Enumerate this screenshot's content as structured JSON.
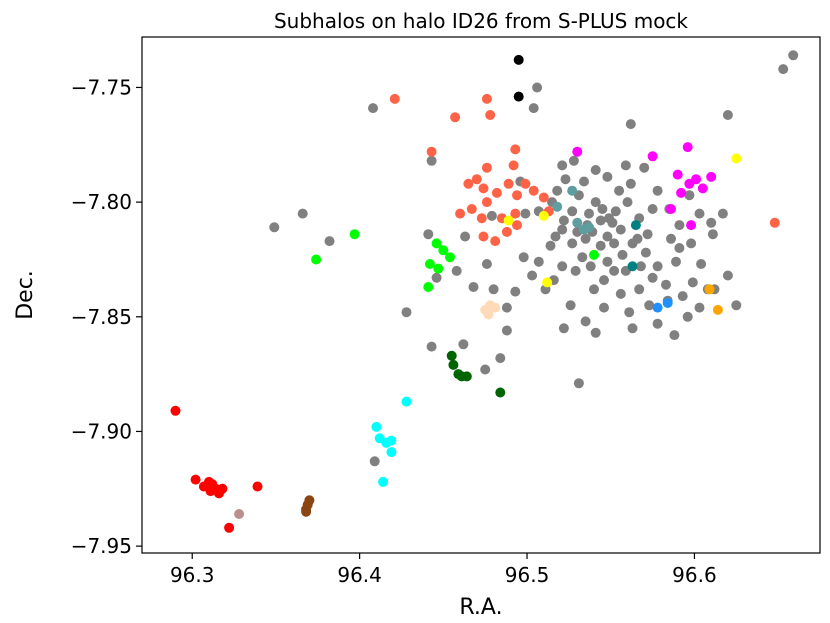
{
  "chart_data": {
    "type": "scatter",
    "title": "Subhalos on halo ID26 from S-PLUS mock",
    "xlabel": "R.A.",
    "ylabel": "Dec.",
    "xlim": [
      96.27,
      96.675
    ],
    "ylim": [
      -7.953,
      -7.728
    ],
    "xticks": [
      96.3,
      96.4,
      96.5,
      96.6
    ],
    "xtick_labels": [
      "96.3",
      "96.4",
      "96.5",
      "96.6"
    ],
    "yticks": [
      -7.95,
      -7.9,
      -7.85,
      -7.8,
      -7.75
    ],
    "ytick_labels": [
      "−7.95",
      "−7.90",
      "−7.85",
      "−7.80",
      "−7.75"
    ],
    "grid": false,
    "legend": null,
    "series": [
      {
        "color": "#808080",
        "points": [
          [
            96.408,
            -7.759
          ],
          [
            96.349,
            -7.811
          ],
          [
            96.366,
            -7.805
          ],
          [
            96.382,
            -7.817
          ],
          [
            96.443,
            -7.782
          ],
          [
            96.441,
            -7.814
          ],
          [
            96.463,
            -7.815
          ],
          [
            96.479,
            -7.806
          ],
          [
            96.499,
            -7.805
          ],
          [
            96.517,
            -7.815
          ],
          [
            96.496,
            -7.791
          ],
          [
            96.504,
            -7.759
          ],
          [
            96.506,
            -7.75
          ],
          [
            96.521,
            -7.784
          ],
          [
            96.518,
            -7.795
          ],
          [
            96.528,
            -7.782
          ],
          [
            96.534,
            -7.791
          ],
          [
            96.541,
            -7.8
          ],
          [
            96.549,
            -7.807
          ],
          [
            96.555,
            -7.795
          ],
          [
            96.562,
            -7.766
          ],
          [
            96.57,
            -7.785
          ],
          [
            96.578,
            -7.795
          ],
          [
            96.585,
            -7.803
          ],
          [
            96.559,
            -7.784
          ],
          [
            96.562,
            -7.792
          ],
          [
            96.567,
            -7.807
          ],
          [
            96.572,
            -7.814
          ],
          [
            96.598,
            -7.818
          ],
          [
            96.61,
            -7.809
          ],
          [
            96.617,
            -7.805
          ],
          [
            96.62,
            -7.762
          ],
          [
            96.653,
            -7.742
          ],
          [
            96.659,
            -7.736
          ],
          [
            96.578,
            -7.828
          ],
          [
            96.583,
            -7.836
          ],
          [
            96.589,
            -7.826
          ],
          [
            96.593,
            -7.841
          ],
          [
            96.599,
            -7.835
          ],
          [
            96.604,
            -7.827
          ],
          [
            96.608,
            -7.838
          ],
          [
            96.556,
            -7.84
          ],
          [
            96.561,
            -7.848
          ],
          [
            96.563,
            -7.855
          ],
          [
            96.567,
            -7.838
          ],
          [
            96.573,
            -7.845
          ],
          [
            96.546,
            -7.846
          ],
          [
            96.541,
            -7.857
          ],
          [
            96.535,
            -7.852
          ],
          [
            96.526,
            -7.845
          ],
          [
            96.522,
            -7.855
          ],
          [
            96.531,
            -7.879
          ],
          [
            96.511,
            -7.838
          ],
          [
            96.507,
            -7.826
          ],
          [
            96.514,
            -7.819
          ],
          [
            96.521,
            -7.812
          ],
          [
            96.527,
            -7.818
          ],
          [
            96.533,
            -7.824
          ],
          [
            96.539,
            -7.813
          ],
          [
            96.544,
            -7.819
          ],
          [
            96.548,
            -7.826
          ],
          [
            96.552,
            -7.818
          ],
          [
            96.556,
            -7.812
          ],
          [
            96.527,
            -7.804
          ],
          [
            96.531,
            -7.797
          ],
          [
            96.537,
            -7.805
          ],
          [
            96.545,
            -7.803
          ],
          [
            96.551,
            -7.809
          ],
          [
            96.538,
            -7.828
          ],
          [
            96.529,
            -7.83
          ],
          [
            96.521,
            -7.828
          ],
          [
            96.516,
            -7.834
          ],
          [
            96.503,
            -7.832
          ],
          [
            96.498,
            -7.824
          ],
          [
            96.493,
            -7.839
          ],
          [
            96.488,
            -7.846
          ],
          [
            96.48,
            -7.838
          ],
          [
            96.476,
            -7.827
          ],
          [
            96.468,
            -7.837
          ],
          [
            96.458,
            -7.83
          ],
          [
            96.446,
            -7.833
          ],
          [
            96.428,
            -7.848
          ],
          [
            96.443,
            -7.863
          ],
          [
            96.475,
            -7.873
          ],
          [
            96.484,
            -7.868
          ],
          [
            96.409,
            -7.913
          ],
          [
            96.462,
            -7.862
          ],
          [
            96.488,
            -7.856
          ],
          [
            96.578,
            -7.853
          ],
          [
            96.588,
            -7.858
          ],
          [
            96.596,
            -7.85
          ],
          [
            96.603,
            -7.846
          ],
          [
            96.612,
            -7.838
          ],
          [
            96.62,
            -7.832
          ],
          [
            96.625,
            -7.845
          ],
          [
            96.571,
            -7.822
          ],
          [
            96.566,
            -7.816
          ],
          [
            96.552,
            -7.83
          ],
          [
            96.546,
            -7.834
          ],
          [
            96.54,
            -7.838
          ],
          [
            96.586,
            -7.816
          ],
          [
            96.591,
            -7.81
          ],
          [
            96.575,
            -7.803
          ],
          [
            96.541,
            -7.786
          ],
          [
            96.548,
            -7.789
          ],
          [
            96.507,
            -7.804
          ],
          [
            96.515,
            -7.8
          ],
          [
            96.522,
            -7.808
          ],
          [
            96.597,
            -7.797
          ],
          [
            96.603,
            -7.805
          ],
          [
            96.611,
            -7.814
          ],
          [
            96.591,
            -7.82
          ],
          [
            96.523,
            -7.79
          ],
          [
            96.53,
            -7.813
          ],
          [
            96.535,
            -7.816
          ],
          [
            96.557,
            -7.823
          ],
          [
            96.563,
            -7.818
          ],
          [
            96.568,
            -7.828
          ],
          [
            96.575,
            -7.833
          ],
          [
            96.584,
            -7.843
          ],
          [
            96.559,
            -7.83
          ],
          [
            96.548,
            -7.815
          ],
          [
            96.536,
            -7.81
          ],
          [
            96.544,
            -7.808
          ],
          [
            96.553,
            -7.804
          ],
          [
            96.56,
            -7.8
          ]
        ]
      },
      {
        "color": "#ff6347",
        "points": [
          [
            96.421,
            -7.755
          ],
          [
            96.443,
            -7.778
          ],
          [
            96.457,
            -7.763
          ],
          [
            96.476,
            -7.755
          ],
          [
            96.478,
            -7.762
          ],
          [
            96.493,
            -7.777
          ],
          [
            96.492,
            -7.784
          ],
          [
            96.476,
            -7.785
          ],
          [
            96.47,
            -7.79
          ],
          [
            96.465,
            -7.792
          ],
          [
            96.474,
            -7.794
          ],
          [
            96.482,
            -7.796
          ],
          [
            96.489,
            -7.792
          ],
          [
            96.494,
            -7.797
          ],
          [
            96.499,
            -7.792
          ],
          [
            96.504,
            -7.795
          ],
          [
            96.46,
            -7.805
          ],
          [
            96.467,
            -7.803
          ],
          [
            96.473,
            -7.807
          ],
          [
            96.476,
            -7.8
          ],
          [
            96.485,
            -7.807
          ],
          [
            96.493,
            -7.805
          ],
          [
            96.488,
            -7.813
          ],
          [
            96.481,
            -7.817
          ],
          [
            96.474,
            -7.815
          ],
          [
            96.494,
            -7.81
          ],
          [
            96.51,
            -7.798
          ],
          [
            96.513,
            -7.804
          ],
          [
            96.648,
            -7.809
          ]
        ]
      },
      {
        "color": "#000000",
        "points": [
          [
            96.495,
            -7.738
          ],
          [
            96.495,
            -7.754
          ]
        ]
      },
      {
        "color": "#ff00ff",
        "points": [
          [
            96.53,
            -7.778
          ],
          [
            96.575,
            -7.78
          ],
          [
            96.59,
            -7.788
          ],
          [
            96.596,
            -7.776
          ],
          [
            96.597,
            -7.792
          ],
          [
            96.601,
            -7.79
          ],
          [
            96.605,
            -7.794
          ],
          [
            96.61,
            -7.789
          ],
          [
            96.592,
            -7.796
          ],
          [
            96.586,
            -7.803
          ],
          [
            96.598,
            -7.81
          ]
        ]
      },
      {
        "color": "#5f9ea0",
        "points": [
          [
            96.518,
            -7.802
          ],
          [
            96.527,
            -7.795
          ],
          [
            96.53,
            -7.809
          ],
          [
            96.534,
            -7.812
          ],
          [
            96.537,
            -7.811
          ]
        ]
      },
      {
        "color": "#008080",
        "points": [
          [
            96.565,
            -7.81
          ],
          [
            96.563,
            -7.828
          ]
        ]
      },
      {
        "color": "#ffff00",
        "points": [
          [
            96.625,
            -7.781
          ],
          [
            96.489,
            -7.808
          ],
          [
            96.51,
            -7.806
          ],
          [
            96.512,
            -7.835
          ]
        ]
      },
      {
        "color": "#00ff00",
        "points": [
          [
            96.374,
            -7.825
          ],
          [
            96.397,
            -7.814
          ],
          [
            96.441,
            -7.837
          ],
          [
            96.442,
            -7.827
          ],
          [
            96.446,
            -7.818
          ],
          [
            96.45,
            -7.821
          ],
          [
            96.454,
            -7.824
          ],
          [
            96.447,
            -7.829
          ],
          [
            96.54,
            -7.823
          ]
        ]
      },
      {
        "color": "#ffdab9",
        "points": [
          [
            96.475,
            -7.847
          ],
          [
            96.478,
            -7.845
          ],
          [
            96.481,
            -7.846
          ],
          [
            96.477,
            -7.849
          ]
        ]
      },
      {
        "color": "#006400",
        "points": [
          [
            96.455,
            -7.867
          ],
          [
            96.456,
            -7.871
          ],
          [
            96.459,
            -7.875
          ],
          [
            96.461,
            -7.876
          ],
          [
            96.464,
            -7.876
          ],
          [
            96.484,
            -7.883
          ]
        ]
      },
      {
        "color": "#1e90ff",
        "points": [
          [
            96.578,
            -7.846
          ],
          [
            96.584,
            -7.844
          ]
        ]
      },
      {
        "color": "#ffa500",
        "points": [
          [
            96.609,
            -7.838
          ],
          [
            96.614,
            -7.847
          ]
        ]
      },
      {
        "color": "#00ffff",
        "points": [
          [
            96.428,
            -7.887
          ],
          [
            96.41,
            -7.898
          ],
          [
            96.412,
            -7.903
          ],
          [
            96.416,
            -7.905
          ],
          [
            96.419,
            -7.904
          ],
          [
            96.419,
            -7.909
          ],
          [
            96.414,
            -7.922
          ]
        ]
      },
      {
        "color": "#ff0000",
        "points": [
          [
            96.29,
            -7.891
          ],
          [
            96.302,
            -7.921
          ],
          [
            96.307,
            -7.924
          ],
          [
            96.31,
            -7.922
          ],
          [
            96.311,
            -7.926
          ],
          [
            96.314,
            -7.925
          ],
          [
            96.316,
            -7.927
          ],
          [
            96.318,
            -7.925
          ],
          [
            96.312,
            -7.923
          ],
          [
            96.339,
            -7.924
          ],
          [
            96.322,
            -7.942
          ]
        ]
      },
      {
        "color": "#bc8f8f",
        "points": [
          [
            96.328,
            -7.936
          ]
        ]
      },
      {
        "color": "#8b4513",
        "points": [
          [
            96.368,
            -7.934
          ],
          [
            96.369,
            -7.932
          ],
          [
            96.37,
            -7.93
          ],
          [
            96.368,
            -7.935
          ]
        ]
      }
    ]
  }
}
